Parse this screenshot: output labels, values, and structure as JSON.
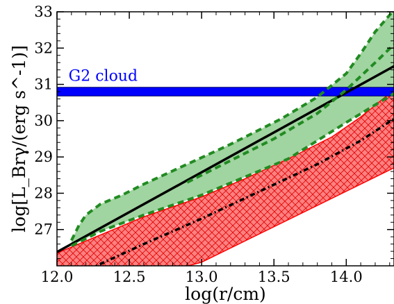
{
  "chart_data": {
    "type": "line",
    "xlabel": "log(r/cm)",
    "ylabel": "log[L_Brγ/(erg s^-1)]",
    "xlim": [
      12.0,
      14.33
    ],
    "ylim": [
      26.0,
      33.0
    ],
    "xticks": [
      "12.0",
      "12.5",
      "13.0",
      "13.5",
      "14.0"
    ],
    "yticks": [
      "27",
      "28",
      "29",
      "30",
      "31",
      "32",
      "33"
    ],
    "grid": false,
    "annotations": [
      {
        "text": "G2 cloud",
        "x": 12.08,
        "y": 31.1,
        "color": "#0000ff"
      }
    ],
    "bands": [
      {
        "kind": "horizontal_band",
        "y_low": 30.68,
        "y_high": 30.92,
        "color": "#0000ff"
      }
    ],
    "regions": [
      {
        "style": "green_shaded",
        "color": "#2ca02c",
        "upper": {
          "x": [
            12.1,
            12.15,
            12.2,
            12.3,
            12.45,
            12.6,
            12.9,
            13.2,
            13.55,
            13.8,
            14.0,
            14.1,
            14.2,
            14.33
          ],
          "y": [
            26.7,
            27.1,
            27.4,
            27.7,
            27.95,
            28.25,
            28.8,
            29.35,
            30.05,
            30.65,
            31.3,
            31.85,
            32.45,
            33.05
          ]
        },
        "lower": {
          "x": [
            12.1,
            12.3,
            12.6,
            13.0,
            13.3,
            13.6,
            14.0,
            14.33
          ],
          "y": [
            26.55,
            26.95,
            27.4,
            27.95,
            28.45,
            28.95,
            29.95,
            30.75
          ]
        }
      },
      {
        "style": "red_crosshatch",
        "color": "#ff0000",
        "upper": {
          "x": [
            12.0,
            12.3,
            12.6,
            13.0,
            13.3,
            13.6,
            13.9,
            14.1,
            14.33
          ],
          "y": [
            26.35,
            26.85,
            27.35,
            27.9,
            28.4,
            28.95,
            29.55,
            30.1,
            30.85
          ]
        },
        "lower": {
          "x": [
            12.0,
            12.4,
            13.0,
            14.33
          ],
          "y": [
            25.25,
            25.45,
            26.1,
            28.7
          ]
        }
      }
    ],
    "series": [
      {
        "style": "solid",
        "color": "#000000",
        "x": [
          12.0,
          14.33
        ],
        "y": [
          26.38,
          31.5
        ]
      },
      {
        "style": "dashdot",
        "color": "#000000",
        "x": [
          12.0,
          12.3,
          12.6,
          13.0,
          13.4,
          13.8,
          14.1,
          14.33
        ],
        "y": [
          25.5,
          26.05,
          26.6,
          27.3,
          28.05,
          28.8,
          29.45,
          30.05
        ]
      },
      {
        "style": "dashed",
        "color": "#228b22",
        "x": [
          12.1,
          12.15,
          12.2,
          12.3,
          12.45,
          12.6,
          12.9,
          13.2,
          13.55,
          13.8,
          14.0,
          14.1,
          14.2,
          14.33
        ],
        "y": [
          26.7,
          27.1,
          27.4,
          27.7,
          27.95,
          28.25,
          28.8,
          29.35,
          30.05,
          30.65,
          31.3,
          31.85,
          32.45,
          33.05
        ]
      },
      {
        "style": "dashed",
        "color": "#228b22",
        "x": [
          12.1,
          12.3,
          12.6,
          13.0,
          13.3,
          13.6,
          14.0,
          14.33
        ],
        "y": [
          26.55,
          26.95,
          27.4,
          27.95,
          28.45,
          28.95,
          29.95,
          30.75
        ]
      },
      {
        "style": "dashed",
        "color": "#228b22",
        "x": [
          12.9,
          13.2,
          13.5,
          13.8,
          14.0,
          14.2,
          14.33
        ],
        "y": [
          28.3,
          28.9,
          29.5,
          30.2,
          30.85,
          31.6,
          32.1
        ]
      }
    ]
  }
}
